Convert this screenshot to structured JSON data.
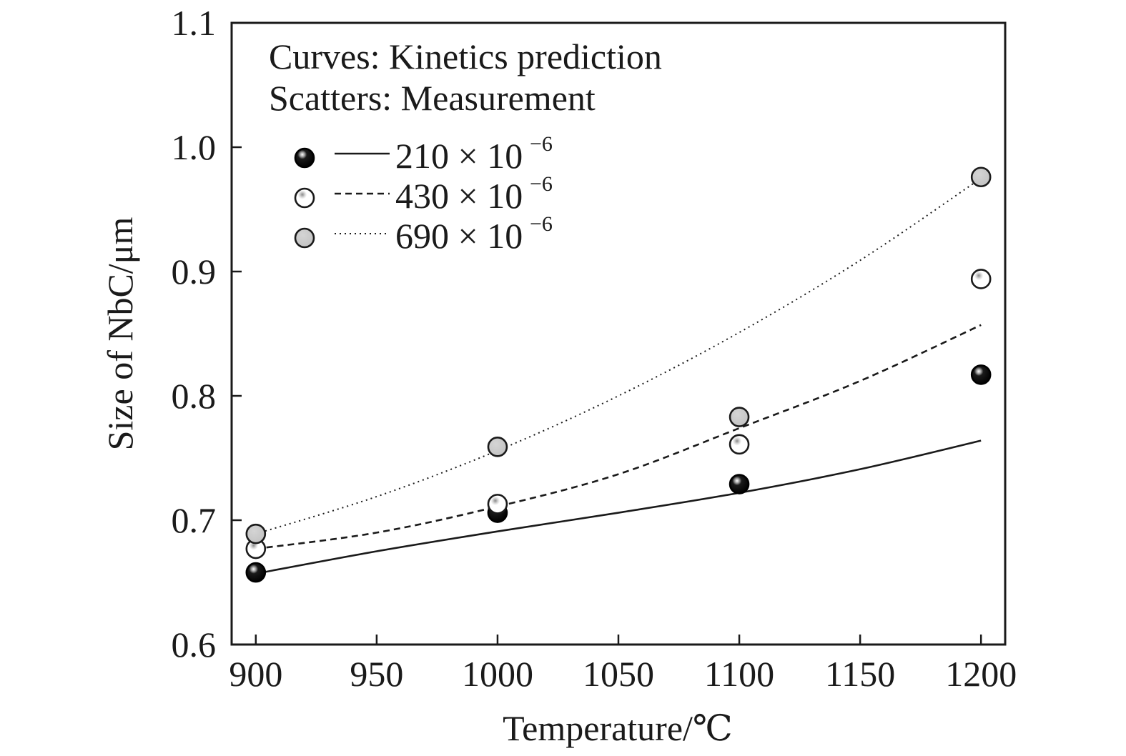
{
  "chart_data": {
    "type": "line",
    "xlabel": "Temperature/℃",
    "ylabel": "Size of NbC/μm",
    "xlim": [
      890,
      1210
    ],
    "ylim": [
      0.6,
      1.1
    ],
    "xticks": [
      900,
      950,
      1000,
      1050,
      1100,
      1150,
      1200
    ],
    "xtick_labels": [
      "900",
      "950",
      "1000",
      "1050",
      "1100",
      "1150",
      "1200"
    ],
    "yticks": [
      0.6,
      0.7,
      0.8,
      0.9,
      1.0,
      1.1
    ],
    "ytick_labels": [
      "0.6",
      "0.7",
      "0.8",
      "0.9",
      "1.0",
      "1.1"
    ],
    "grid": false,
    "annotations": [
      "Curves: Kinetics prediction",
      "Scatters: Measurement"
    ],
    "legend_position": "top-left",
    "series": [
      {
        "name": "210 × 10",
        "exponent": "−6",
        "color": "#1a1a1a",
        "line_style": "solid",
        "marker": "filled-black",
        "curve": {
          "x": [
            900,
            950,
            1000,
            1050,
            1100,
            1150,
            1200
          ],
          "y": [
            0.657,
            0.675,
            0.691,
            0.706,
            0.722,
            0.741,
            0.764
          ]
        },
        "points": {
          "x": [
            900,
            1000,
            1100,
            1200
          ],
          "y": [
            0.658,
            0.706,
            0.729,
            0.817
          ]
        }
      },
      {
        "name": "430 × 10",
        "exponent": "−6",
        "color": "#1a1a1a",
        "line_style": "dashed",
        "marker": "open-white",
        "curve": {
          "x": [
            900,
            950,
            1000,
            1050,
            1100,
            1150,
            1200
          ],
          "y": [
            0.677,
            0.69,
            0.711,
            0.737,
            0.774,
            0.812,
            0.857
          ]
        },
        "points": {
          "x": [
            900,
            1000,
            1100,
            1200
          ],
          "y": [
            0.677,
            0.713,
            0.761,
            0.894
          ]
        }
      },
      {
        "name": "690 × 10",
        "exponent": "−6",
        "color": "#1a1a1a",
        "line_style": "dotted",
        "marker": "filled-gray",
        "curve": {
          "x": [
            900,
            950,
            1000,
            1050,
            1100,
            1150,
            1200
          ],
          "y": [
            0.689,
            0.719,
            0.756,
            0.8,
            0.851,
            0.909,
            0.975
          ]
        },
        "points": {
          "x": [
            900,
            1000,
            1100,
            1200
          ],
          "y": [
            0.689,
            0.759,
            0.783,
            0.976
          ]
        }
      }
    ]
  }
}
